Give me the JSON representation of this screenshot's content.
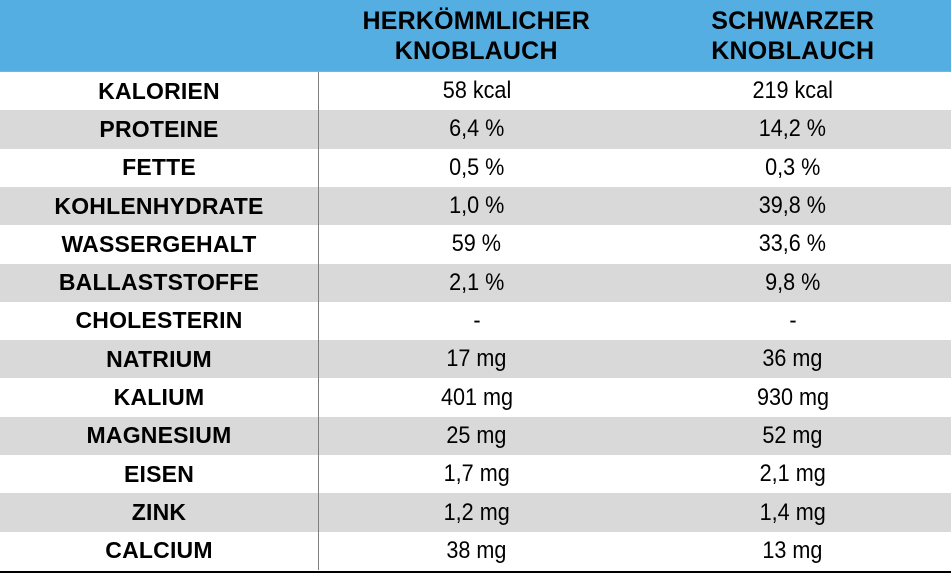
{
  "header": {
    "corner": "",
    "conventional": {
      "line1": "HERKÖMMLICHER",
      "line2": "KNOBLAUCH"
    },
    "black": {
      "line1": "SCHWARZER",
      "line2": "KNOBLAUCH"
    }
  },
  "chart_data": {
    "type": "table",
    "title": "",
    "categories": [
      "KALORIEN",
      "PROTEINE",
      "FETTE",
      "KOHLENHYDRATE",
      "WASSERGEHALT",
      "BALLASTSTOFFE",
      "CHOLESTERIN",
      "NATRIUM",
      "KALIUM",
      "MAGNESIUM",
      "EISEN",
      "ZINK",
      "CALCIUM"
    ],
    "series": [
      {
        "name": "HERKÖMMLICHER KNOBLAUCH",
        "values": [
          "58 kcal",
          "6,4 %",
          "0,5 %",
          "1,0 %",
          "59 %",
          "2,1 %",
          "-",
          "17 mg",
          "401 mg",
          "25 mg",
          "1,7 mg",
          "1,2 mg",
          "38 mg"
        ]
      },
      {
        "name": "SCHWARZER KNOBLAUCH",
        "values": [
          "219 kcal",
          "14,2 %",
          "0,3 %",
          "39,8 %",
          "33,6 %",
          "9,8 %",
          "-",
          "36 mg",
          "930 mg",
          "52 mg",
          "2,1 mg",
          "1,4 mg",
          "13 mg"
        ]
      }
    ],
    "layout": {
      "striped_rows": true,
      "stripe_start_row": 2,
      "column_divider_after": "labels"
    }
  },
  "theme": {
    "header-bg": "#55AEE2",
    "stripe": "#D9D9D9",
    "divider": "#808080",
    "header-border": "#A6A6A6",
    "bottom-border": "#000000",
    "text": "#000000"
  }
}
